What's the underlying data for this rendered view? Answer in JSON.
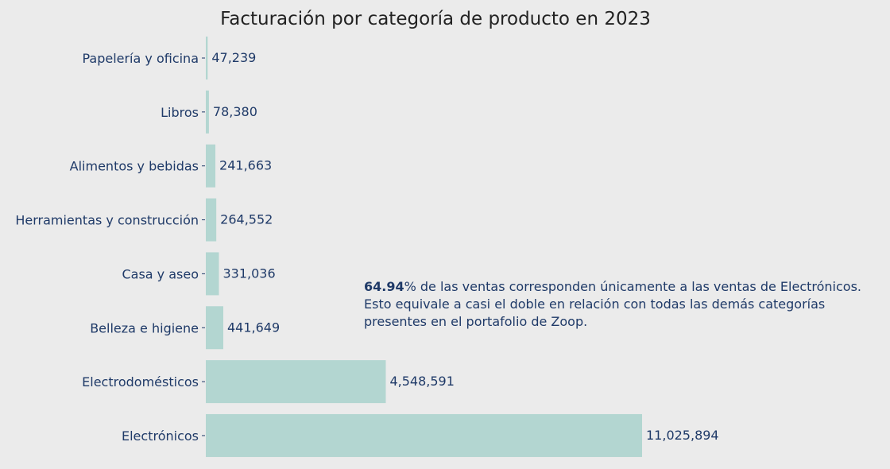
{
  "chart_data": {
    "type": "bar",
    "orientation": "horizontal",
    "title": "Facturación por categoría de producto en 2023",
    "xlabel": "",
    "ylabel": "",
    "categories": [
      "Papelería y oficina",
      "Libros",
      "Alimentos y bebidas",
      "Herramientas y construcción",
      "Casa y aseo",
      "Belleza e higiene",
      "Electrodomésticos",
      "Electrónicos"
    ],
    "values": [
      47239,
      78380,
      241663,
      264552,
      331036,
      441649,
      4548591,
      11025894
    ],
    "value_labels": [
      "47,239",
      "78,380",
      "241,663",
      "264,552",
      "331,036",
      "441,649",
      "4,548,591",
      "11,025,894"
    ],
    "xlim": [
      0,
      11025894
    ],
    "grid": false,
    "annotation": {
      "highlight": "64.94",
      "line1_rest": "% de las ventas corresponden únicamente a las ventas de Electrónicos.",
      "line2": "Esto equivale a casi el doble en relación con todas las demás categorías",
      "line3": "presentes en el portafolio de Zoop."
    }
  },
  "colors": {
    "background": "#ebebeb",
    "bar": "#b3d6d1",
    "text": "#1f3a68",
    "title": "#222222"
  }
}
